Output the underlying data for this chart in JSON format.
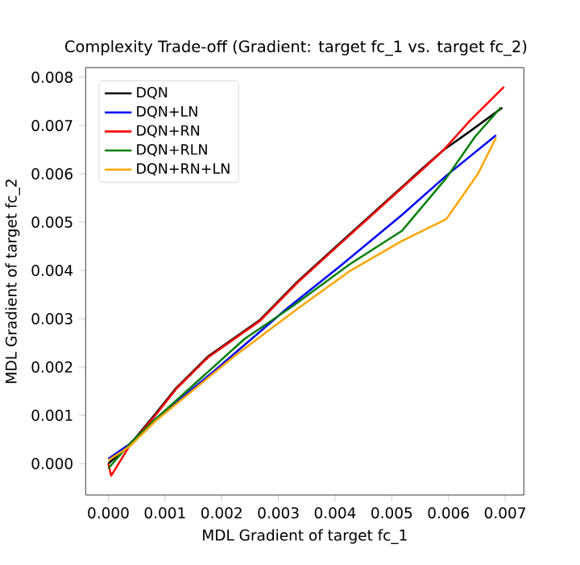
{
  "chart_data": {
    "type": "line",
    "title": "Complexity Trade-off (Gradient: target fc_1 vs. target fc_2)",
    "xlabel": "MDL Gradient of target fc_1",
    "ylabel": "MDL Gradient of target fc_2",
    "xlim": [
      -0.0004,
      0.00733
    ],
    "ylim": [
      -0.00065,
      0.0082
    ],
    "xticks": [
      {
        "value": 0,
        "label": "0.000"
      },
      {
        "value": 0.001,
        "label": "0.001"
      },
      {
        "value": 0.002,
        "label": "0.002"
      },
      {
        "value": 0.003,
        "label": "0.003"
      },
      {
        "value": 0.004,
        "label": "0.004"
      },
      {
        "value": 0.005,
        "label": "0.005"
      },
      {
        "value": 0.006,
        "label": "0.006"
      },
      {
        "value": 0.007,
        "label": "0.007"
      }
    ],
    "yticks": [
      {
        "value": 0,
        "label": "0.000"
      },
      {
        "value": 0.001,
        "label": "0.001"
      },
      {
        "value": 0.002,
        "label": "0.002"
      },
      {
        "value": 0.003,
        "label": "0.003"
      },
      {
        "value": 0.004,
        "label": "0.004"
      },
      {
        "value": 0.005,
        "label": "0.005"
      },
      {
        "value": 0.006,
        "label": "0.006"
      },
      {
        "value": 0.007,
        "label": "0.007"
      },
      {
        "value": 0.008,
        "label": "0.008"
      }
    ],
    "legend": "top left",
    "series": [
      {
        "name": "DQN",
        "color": "#000000",
        "x": [
          0,
          0.00037,
          0.00083,
          0.0012,
          0.00176,
          0.00268,
          0.00333,
          0.00407,
          0.00555,
          0.00592,
          0.00638,
          0.00695
        ],
        "values": [
          0,
          0.00038,
          0.00103,
          0.00157,
          0.00222,
          0.00298,
          0.00376,
          0.00455,
          0.00612,
          0.0065,
          0.00688,
          0.00737
        ]
      },
      {
        "name": "DQN+LN",
        "color": "#0000ff",
        "x": [
          0,
          0.00037,
          0.00083,
          0.00185,
          0.00314,
          0.00407,
          0.00518,
          0.00596,
          0.00684
        ],
        "values": [
          0.0001,
          0.0004,
          0.00092,
          0.0019,
          0.0032,
          0.00407,
          0.00515,
          0.00596,
          0.0068
        ]
      },
      {
        "name": "DQN+RN",
        "color": "#ff0000",
        "x": [
          0,
          5e-05,
          0.00037,
          0.00083,
          0.0012,
          0.00176,
          0.00268,
          0.00333,
          0.00407,
          0.00555,
          0.00592,
          0.00638,
          0.00698
        ],
        "values": [
          0,
          -0.00025,
          0.00036,
          0.001,
          0.00155,
          0.0022,
          0.00296,
          0.00374,
          0.00453,
          0.0061,
          0.0065,
          0.0071,
          0.0078
        ]
      },
      {
        "name": "DQN+RLN",
        "color": "#008000",
        "x": [
          0,
          0.00037,
          0.00083,
          0.00157,
          0.0024,
          0.00324,
          0.00425,
          0.00518,
          0.00596,
          0.00647,
          0.00692
        ],
        "values": [
          -0.0001,
          0.0004,
          0.00092,
          0.0017,
          0.00258,
          0.00325,
          0.00412,
          0.00482,
          0.00591,
          0.00677,
          0.00737
        ]
      },
      {
        "name": "DQN+RN+LN",
        "color": "#ffa500",
        "x": [
          0,
          0.00037,
          0.00083,
          0.00222,
          0.00333,
          0.00425,
          0.00518,
          0.00596,
          0.00652,
          0.00684
        ],
        "values": [
          7e-05,
          0.00035,
          0.00088,
          0.00222,
          0.0032,
          0.00398,
          0.00461,
          0.00506,
          0.006,
          0.00675
        ]
      }
    ]
  }
}
